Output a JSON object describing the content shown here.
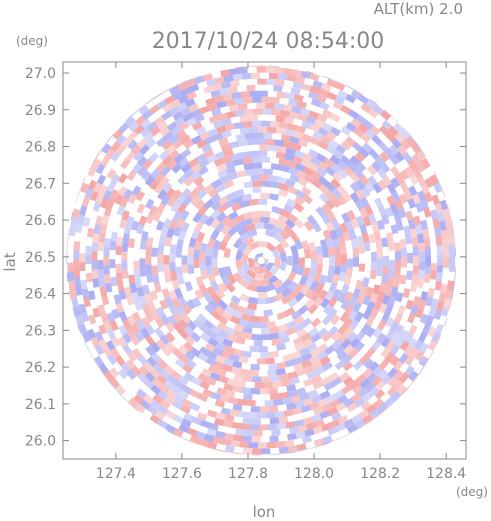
{
  "header": {
    "altitude_label": "ALT(km) 2.0",
    "datetime": "2017/10/24 08:54:00",
    "yunit": "(deg)",
    "xunit": "(deg)"
  },
  "chart_data": {
    "type": "heatmap",
    "subtype": "polar-radar-ppi",
    "xlabel": "lon",
    "ylabel": "lat",
    "xlim": [
      127.24,
      128.46
    ],
    "ylim": [
      25.95,
      27.03
    ],
    "x_ticks": [
      127.4,
      127.6,
      127.8,
      128.0,
      128.2,
      128.4
    ],
    "y_ticks": [
      26.0,
      26.1,
      26.2,
      26.3,
      26.4,
      26.5,
      26.6,
      26.7,
      26.8,
      26.9,
      27.0
    ],
    "center": {
      "lon": 127.84,
      "lat": 26.49
    },
    "range_deg_lat": 0.53,
    "colors": {
      "positive": "#f4a6a6",
      "negative": "#a9acf2",
      "neutral": "#ffffff",
      "axis": "#888888"
    },
    "grid": false,
    "legend": "none"
  }
}
